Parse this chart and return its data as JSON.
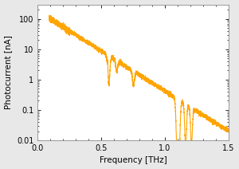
{
  "title": "",
  "xlabel": "Frequency [THz]",
  "ylabel": "Photocurrent [nA]",
  "line_color": "#FFA500",
  "line_width": 0.8,
  "xlim": [
    0,
    1.5
  ],
  "ylim": [
    0.01,
    300
  ],
  "yticks": [
    0.01,
    0.1,
    1,
    10,
    100
  ],
  "ytick_labels": [
    "0.01",
    "0.1",
    "1",
    "10",
    "100"
  ],
  "xticks": [
    0.0,
    0.5,
    1.0,
    1.5
  ],
  "background_color": "#e8e8e8",
  "plot_bg_color": "#ffffff",
  "figsize": [
    3.0,
    2.12
  ],
  "dpi": 100
}
